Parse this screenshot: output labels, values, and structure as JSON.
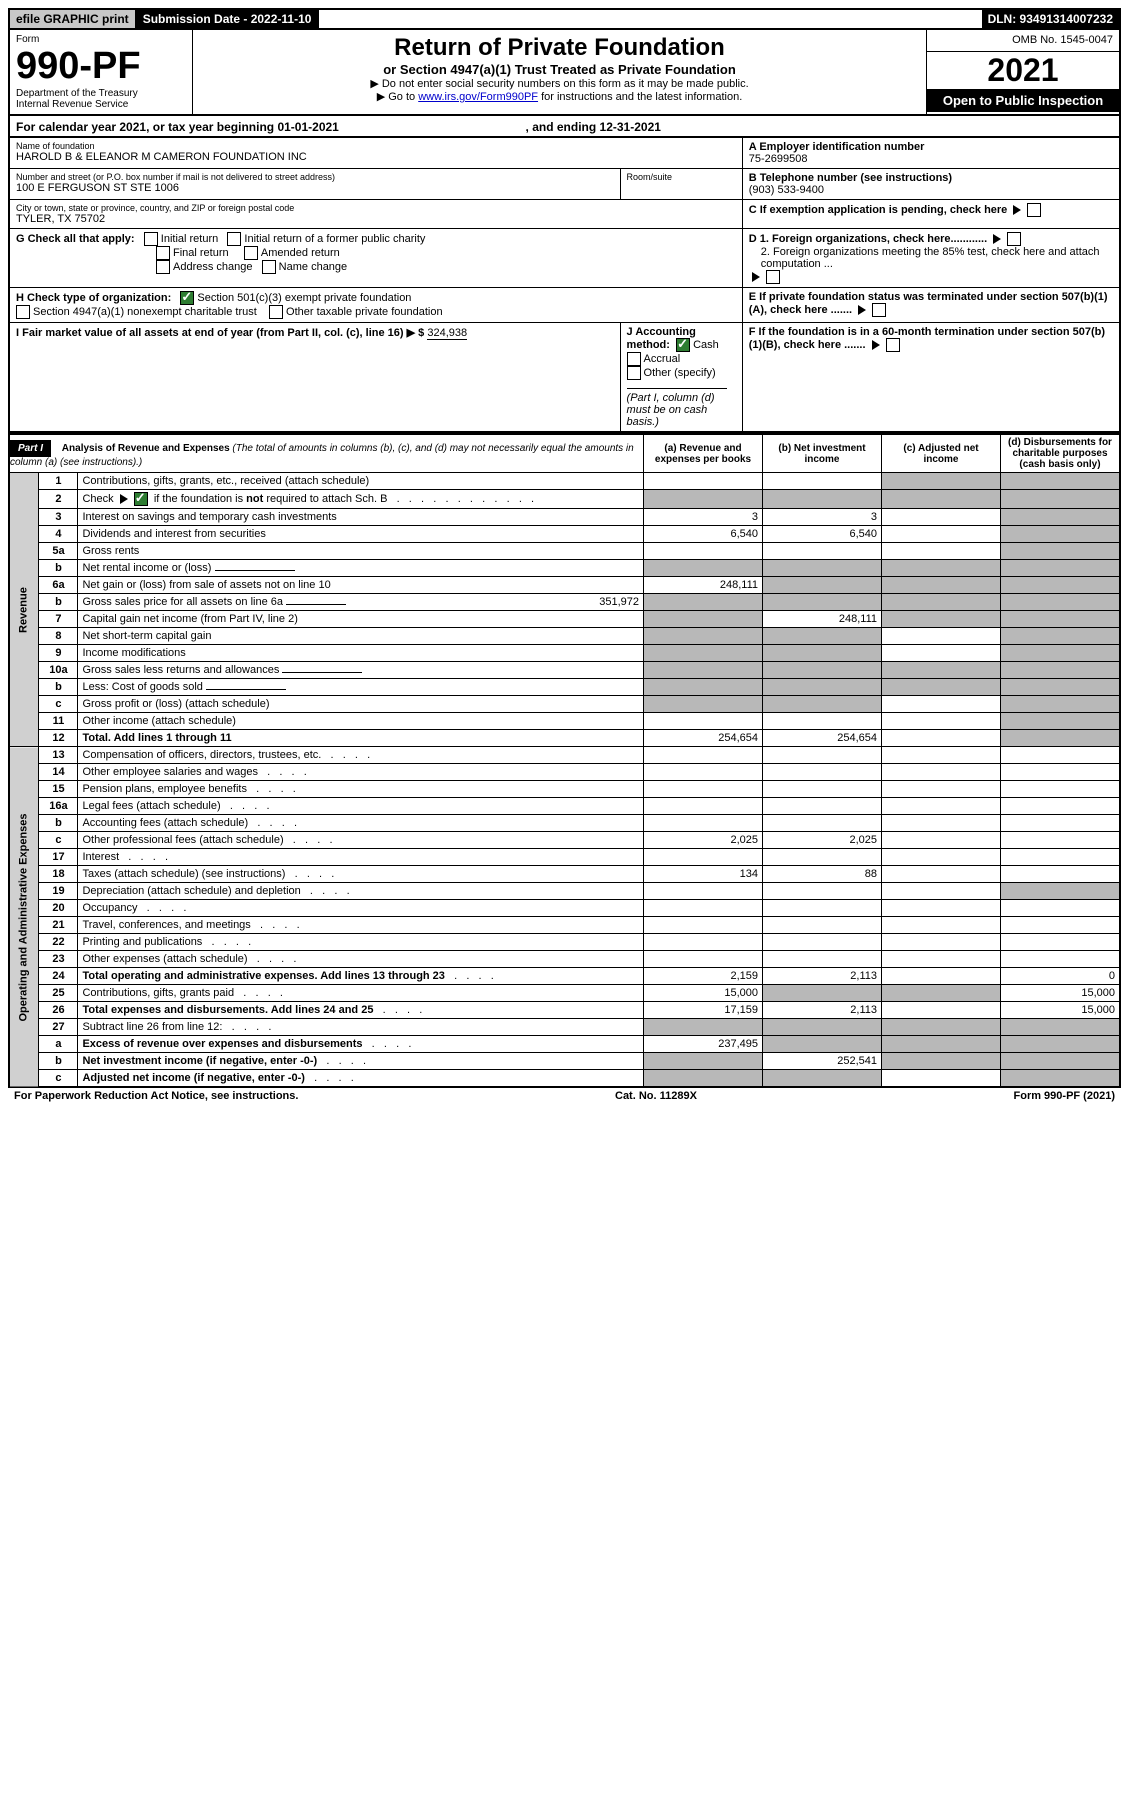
{
  "topbar": {
    "efile": "efile GRAPHIC print",
    "subdate_label": "Submission Date - 2022-11-10",
    "dln": "DLN: 93491314007232"
  },
  "header": {
    "form_label": "Form",
    "form_no": "990-PF",
    "dept": "Department of the Treasury\nInternal Revenue Service",
    "title": "Return of Private Foundation",
    "subtitle": "or Section 4947(a)(1) Trust Treated as Private Foundation",
    "inst1": "▶ Do not enter social security numbers on this form as it may be made public.",
    "inst2_pre": "▶ Go to ",
    "inst2_link": "www.irs.gov/Form990PF",
    "inst2_post": " for instructions and the latest information.",
    "omb": "OMB No. 1545-0047",
    "year": "2021",
    "open": "Open to Public Inspection"
  },
  "calyear": {
    "text_pre": "For calendar year 2021, or tax year beginning ",
    "begin": "01-01-2021",
    "text_mid": " , and ending ",
    "end": "12-31-2021"
  },
  "info": {
    "name_label": "Name of foundation",
    "name": "HAROLD B & ELEANOR M CAMERON FOUNDATION INC",
    "addr_label": "Number and street (or P.O. box number if mail is not delivered to street address)",
    "addr": "100 E FERGUSON ST STE 1006",
    "room_label": "Room/suite",
    "city_label": "City or town, state or province, country, and ZIP or foreign postal code",
    "city": "TYLER, TX  75702",
    "ein_label": "A Employer identification number",
    "ein": "75-2699508",
    "phone_label": "B Telephone number (see instructions)",
    "phone": "(903) 533-9400",
    "c_label": "C If exemption application is pending, check here",
    "g_label": "G Check all that apply:",
    "g_initial": "Initial return",
    "g_initial_former": "Initial return of a former public charity",
    "g_final": "Final return",
    "g_amended": "Amended return",
    "g_addr": "Address change",
    "g_name": "Name change",
    "d1": "D 1. Foreign organizations, check here............",
    "d2": "2. Foreign organizations meeting the 85% test, check here and attach computation ...",
    "h_label": "H Check type of organization:",
    "h_501c3": "Section 501(c)(3) exempt private foundation",
    "h_4947": "Section 4947(a)(1) nonexempt charitable trust",
    "h_other": "Other taxable private foundation",
    "e_label": "E  If private foundation status was terminated under section 507(b)(1)(A), check here .......",
    "i_label": "I Fair market value of all assets at end of year (from Part II, col. (c), line 16) ▶ $",
    "i_value": "324,938",
    "j_label": "J Accounting method:",
    "j_cash": "Cash",
    "j_accrual": "Accrual",
    "j_other": "Other (specify)",
    "j_note": "(Part I, column (d) must be on cash basis.)",
    "f_label": "F  If the foundation is in a 60-month termination under section 507(b)(1)(B), check here ......."
  },
  "part1": {
    "label": "Part I",
    "title": "Analysis of Revenue and Expenses",
    "title_note": "(The total of amounts in columns (b), (c), and (d) may not necessarily equal the amounts in column (a) (see instructions).)",
    "col_a": "(a) Revenue and expenses per books",
    "col_b": "(b) Net investment income",
    "col_c": "(c) Adjusted net income",
    "col_d": "(d) Disbursements for charitable purposes (cash basis only)"
  },
  "sections": {
    "revenue": "Revenue",
    "opex": "Operating and Administrative Expenses"
  },
  "lines": [
    {
      "n": "1",
      "desc": "Contributions, gifts, grants, etc., received (attach schedule)",
      "a": "",
      "b": "",
      "c": "shade",
      "d": "shade"
    },
    {
      "n": "2",
      "desc": "Check ▶ ☑ if the foundation is not required to attach Sch. B",
      "a": "shade",
      "b": "shade",
      "c": "shade",
      "d": "shade",
      "checked": true
    },
    {
      "n": "3",
      "desc": "Interest on savings and temporary cash investments",
      "a": "3",
      "b": "3",
      "c": "",
      "d": "shade"
    },
    {
      "n": "4",
      "desc": "Dividends and interest from securities",
      "a": "6,540",
      "b": "6,540",
      "c": "",
      "d": "shade"
    },
    {
      "n": "5a",
      "desc": "Gross rents",
      "a": "",
      "b": "",
      "c": "",
      "d": "shade"
    },
    {
      "n": "b",
      "desc": "Net rental income or (loss)",
      "a": "shade",
      "b": "shade",
      "c": "shade",
      "d": "shade",
      "inline": true
    },
    {
      "n": "6a",
      "desc": "Net gain or (loss) from sale of assets not on line 10",
      "a": "248,111",
      "b": "shade",
      "c": "shade",
      "d": "shade"
    },
    {
      "n": "b",
      "desc": "Gross sales price for all assets on line 6a",
      "a": "shade",
      "b": "shade",
      "c": "shade",
      "d": "shade",
      "inline_val": "351,972"
    },
    {
      "n": "7",
      "desc": "Capital gain net income (from Part IV, line 2)",
      "a": "shade",
      "b": "248,111",
      "c": "shade",
      "d": "shade"
    },
    {
      "n": "8",
      "desc": "Net short-term capital gain",
      "a": "shade",
      "b": "shade",
      "c": "",
      "d": "shade"
    },
    {
      "n": "9",
      "desc": "Income modifications",
      "a": "shade",
      "b": "shade",
      "c": "",
      "d": "shade"
    },
    {
      "n": "10a",
      "desc": "Gross sales less returns and allowances",
      "a": "shade",
      "b": "shade",
      "c": "shade",
      "d": "shade",
      "inline": true
    },
    {
      "n": "b",
      "desc": "Less: Cost of goods sold",
      "a": "shade",
      "b": "shade",
      "c": "shade",
      "d": "shade",
      "inline": true
    },
    {
      "n": "c",
      "desc": "Gross profit or (loss) (attach schedule)",
      "a": "shade",
      "b": "shade",
      "c": "",
      "d": "shade"
    },
    {
      "n": "11",
      "desc": "Other income (attach schedule)",
      "a": "",
      "b": "",
      "c": "",
      "d": "shade"
    },
    {
      "n": "12",
      "desc": "Total. Add lines 1 through 11",
      "a": "254,654",
      "b": "254,654",
      "c": "",
      "d": "shade",
      "bold": true
    }
  ],
  "oplines": [
    {
      "n": "13",
      "desc": "Compensation of officers, directors, trustees, etc.",
      "a": "",
      "b": "",
      "c": "",
      "d": ""
    },
    {
      "n": "14",
      "desc": "Other employee salaries and wages",
      "a": "",
      "b": "",
      "c": "",
      "d": ""
    },
    {
      "n": "15",
      "desc": "Pension plans, employee benefits",
      "a": "",
      "b": "",
      "c": "",
      "d": ""
    },
    {
      "n": "16a",
      "desc": "Legal fees (attach schedule)",
      "a": "",
      "b": "",
      "c": "",
      "d": ""
    },
    {
      "n": "b",
      "desc": "Accounting fees (attach schedule)",
      "a": "",
      "b": "",
      "c": "",
      "d": ""
    },
    {
      "n": "c",
      "desc": "Other professional fees (attach schedule)",
      "a": "2,025",
      "b": "2,025",
      "c": "",
      "d": ""
    },
    {
      "n": "17",
      "desc": "Interest",
      "a": "",
      "b": "",
      "c": "",
      "d": ""
    },
    {
      "n": "18",
      "desc": "Taxes (attach schedule) (see instructions)",
      "a": "134",
      "b": "88",
      "c": "",
      "d": ""
    },
    {
      "n": "19",
      "desc": "Depreciation (attach schedule) and depletion",
      "a": "",
      "b": "",
      "c": "",
      "d": "shade"
    },
    {
      "n": "20",
      "desc": "Occupancy",
      "a": "",
      "b": "",
      "c": "",
      "d": ""
    },
    {
      "n": "21",
      "desc": "Travel, conferences, and meetings",
      "a": "",
      "b": "",
      "c": "",
      "d": ""
    },
    {
      "n": "22",
      "desc": "Printing and publications",
      "a": "",
      "b": "",
      "c": "",
      "d": ""
    },
    {
      "n": "23",
      "desc": "Other expenses (attach schedule)",
      "a": "",
      "b": "",
      "c": "",
      "d": ""
    },
    {
      "n": "24",
      "desc": "Total operating and administrative expenses. Add lines 13 through 23",
      "a": "2,159",
      "b": "2,113",
      "c": "",
      "d": "0",
      "bold": true
    },
    {
      "n": "25",
      "desc": "Contributions, gifts, grants paid",
      "a": "15,000",
      "b": "shade",
      "c": "shade",
      "d": "15,000"
    },
    {
      "n": "26",
      "desc": "Total expenses and disbursements. Add lines 24 and 25",
      "a": "17,159",
      "b": "2,113",
      "c": "",
      "d": "15,000",
      "bold": true
    },
    {
      "n": "27",
      "desc": "Subtract line 26 from line 12:",
      "a": "shade",
      "b": "shade",
      "c": "shade",
      "d": "shade"
    },
    {
      "n": "a",
      "desc": "Excess of revenue over expenses and disbursements",
      "a": "237,495",
      "b": "shade",
      "c": "shade",
      "d": "shade",
      "bold": true
    },
    {
      "n": "b",
      "desc": "Net investment income (if negative, enter -0-)",
      "a": "shade",
      "b": "252,541",
      "c": "shade",
      "d": "shade",
      "bold": true
    },
    {
      "n": "c",
      "desc": "Adjusted net income (if negative, enter -0-)",
      "a": "shade",
      "b": "shade",
      "c": "",
      "d": "shade",
      "bold": true
    }
  ],
  "footer": {
    "left": "For Paperwork Reduction Act Notice, see instructions.",
    "mid": "Cat. No. 11289X",
    "right": "Form 990-PF (2021)"
  }
}
